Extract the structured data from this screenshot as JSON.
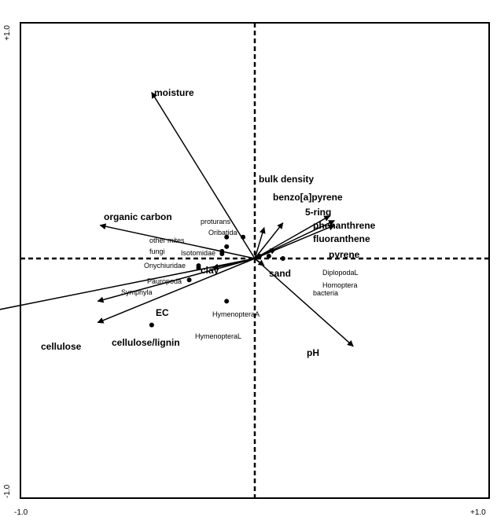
{
  "chart_data": {
    "type": "scatter",
    "subtype": "biplot",
    "title": "",
    "xlim": [
      -1.0,
      1.0
    ],
    "ylim": [
      -1.0,
      1.0
    ],
    "tick_labels": {
      "x_min": "-1.0",
      "x_max": "+1.0",
      "y_min": "-1.0",
      "y_max": "+1.0"
    },
    "grid": false,
    "zero_lines": "dashed",
    "vectors": [
      {
        "label": "moisture",
        "x": -0.44,
        "y": 0.7
      },
      {
        "label": "organic carbon",
        "x": -0.66,
        "y": 0.14
      },
      {
        "label": "cellulose",
        "x": -1.62,
        "y": -0.32
      },
      {
        "label": "cellulose/lignin",
        "x": -0.67,
        "y": -0.27
      },
      {
        "label": "EC",
        "x": -0.67,
        "y": -0.18
      },
      {
        "label": "clay",
        "x": -0.18,
        "y": -0.04
      },
      {
        "label": "bulk density",
        "x": 0.04,
        "y": 0.13
      },
      {
        "label": "benzo[a]pyrene",
        "x": 0.12,
        "y": 0.15
      },
      {
        "label": "5-ring",
        "x": 0.32,
        "y": 0.18
      },
      {
        "label": "phenanthrene",
        "x": 0.34,
        "y": 0.16
      },
      {
        "label": "fluoranthene",
        "x": 0.34,
        "y": 0.14
      },
      {
        "label": "pyrene",
        "x": 0.09,
        "y": 0.04
      },
      {
        "label": "sand",
        "x": 0.04,
        "y": -0.03
      },
      {
        "label": "pH",
        "x": 0.42,
        "y": -0.37
      }
    ],
    "species": [
      {
        "label": "proturans",
        "x": -0.05,
        "y": 0.09
      },
      {
        "label": "Oribatida",
        "x": -0.12,
        "y": 0.09
      },
      {
        "label": "other mites",
        "x": -0.12,
        "y": 0.05
      },
      {
        "label": "fungi",
        "x": -0.14,
        "y": 0.03
      },
      {
        "label": "Isotomidae",
        "x": -0.14,
        "y": 0.02
      },
      {
        "label": "Onychiuridae",
        "x": -0.24,
        "y": -0.03
      },
      {
        "label": "Pauropoda",
        "x": -0.24,
        "y": -0.04
      },
      {
        "label": "Symphyla",
        "x": -0.28,
        "y": -0.09
      },
      {
        "label": "HymenopteraA",
        "x": -0.12,
        "y": -0.18
      },
      {
        "label": "HymenopteraL",
        "x": -0.44,
        "y": -0.28
      },
      {
        "label": "DiplopodaL",
        "x": 0.12,
        "y": 0.0
      },
      {
        "label": "Homoptera",
        "x": 0.02,
        "y": 0.01
      },
      {
        "label": "bacteria",
        "x": 0.06,
        "y": 0.01
      }
    ]
  }
}
